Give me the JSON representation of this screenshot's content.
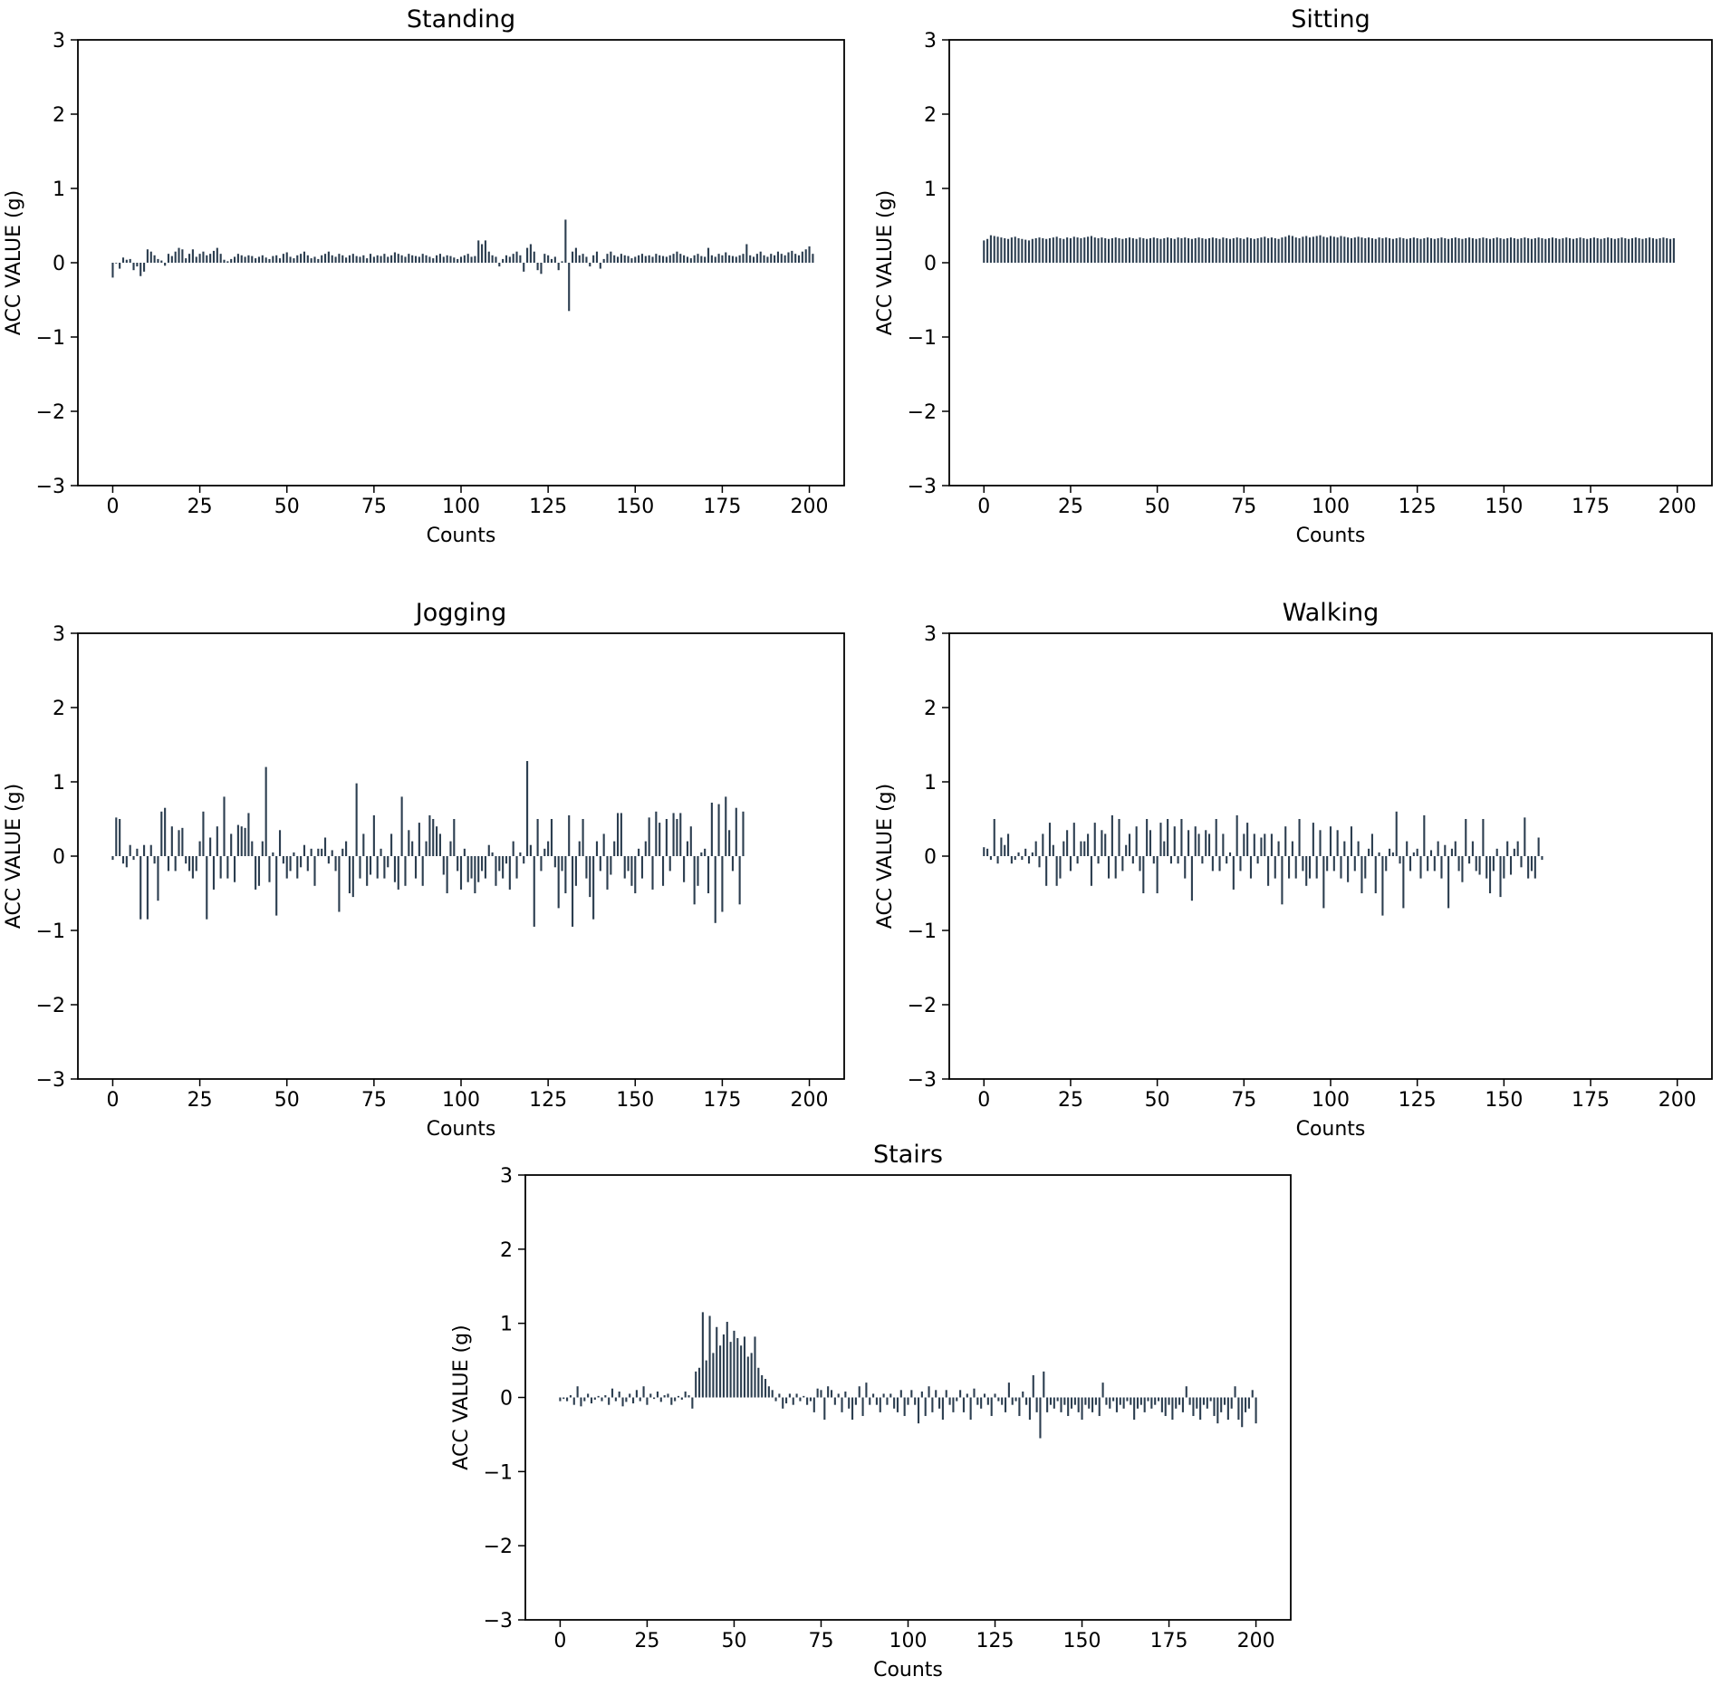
{
  "figure": {
    "bar_color": "#2c3e50"
  },
  "chart_data": [
    {
      "type": "bar",
      "title": "Standing",
      "xlabel": "Counts",
      "ylabel": "ACC VALUE (g)",
      "xlim": [
        -10,
        210
      ],
      "ylim": [
        -3,
        3
      ],
      "xticks": [
        0,
        25,
        50,
        75,
        100,
        125,
        150,
        175,
        200
      ],
      "xtick_labels": [
        "0",
        "25",
        "50",
        "75",
        "100",
        "125",
        "150",
        "175",
        "200"
      ],
      "yticks": [
        -3,
        -2,
        -1,
        0,
        1,
        2,
        3
      ],
      "ytick_labels": [
        "−3",
        "−2",
        "−1",
        "0",
        "1",
        "2",
        "3"
      ],
      "x": {
        "start": 0,
        "step": 1
      },
      "values": [
        -0.2,
        0,
        -0.08,
        0.07,
        0.04,
        0.05,
        -0.1,
        -0.05,
        -0.18,
        -0.12,
        0.18,
        0.15,
        0.1,
        0.05,
        0.03,
        -0.04,
        0.12,
        0.09,
        0.15,
        0.2,
        0.18,
        0.06,
        0.12,
        0.18,
        0.08,
        0.12,
        0.15,
        0.1,
        0.12,
        0.16,
        0.2,
        0.12,
        0.04,
        0.02,
        0.05,
        0.08,
        0.12,
        0.1,
        0.08,
        0.1,
        0.09,
        0.06,
        0.08,
        0.1,
        0.07,
        0.05,
        0.09,
        0.1,
        0.06,
        0.12,
        0.14,
        0.08,
        0.06,
        0.1,
        0.12,
        0.15,
        0.1,
        0.06,
        0.08,
        0.05,
        0.1,
        0.12,
        0.15,
        0.1,
        0.08,
        0.12,
        0.1,
        0.07,
        0.1,
        0.12,
        0.09,
        0.08,
        0.1,
        0.06,
        0.12,
        0.08,
        0.1,
        0.09,
        0.12,
        0.08,
        0.1,
        0.14,
        0.12,
        0.1,
        0.08,
        0.12,
        0.1,
        0.09,
        0.08,
        0.12,
        0.1,
        0.08,
        0.06,
        0.1,
        0.12,
        0.08,
        0.1,
        0.09,
        0.07,
        0.05,
        0.08,
        0.1,
        0.12,
        0.08,
        0.09,
        0.3,
        0.25,
        0.3,
        0.15,
        0.1,
        0.08,
        -0.05,
        0.05,
        0.1,
        0.08,
        0.12,
        0.15,
        0.1,
        -0.12,
        0.2,
        0.25,
        0.15,
        -0.1,
        -0.15,
        0.12,
        0.1,
        0.05,
        0.08,
        -0.1,
        0.02,
        0.58,
        -0.65,
        0.15,
        0.2,
        0.1,
        0.12,
        0.08,
        -0.05,
        0.1,
        0.15,
        -0.08,
        0.05,
        0.12,
        0.15,
        0.1,
        0.08,
        0.12,
        0.1,
        0.09,
        0.06,
        0.08,
        0.1,
        0.12,
        0.09,
        0.1,
        0.08,
        0.12,
        0.1,
        0.09,
        0.08,
        0.1,
        0.12,
        0.15,
        0.12,
        0.1,
        0.08,
        0.06,
        0.1,
        0.12,
        0.09,
        0.08,
        0.2,
        0.1,
        0.08,
        0.12,
        0.1,
        0.14,
        0.1,
        0.09,
        0.08,
        0.1,
        0.12,
        0.25,
        0.1,
        0.08,
        0.12,
        0.15,
        0.1,
        0.08,
        0.12,
        0.1,
        0.15,
        0.12,
        0.1,
        0.14,
        0.16,
        0.12,
        0.1,
        0.15,
        0.18,
        0.22,
        0.12
      ]
    },
    {
      "type": "bar",
      "title": "Sitting",
      "xlabel": "Counts",
      "ylabel": "ACC VALUE (g)",
      "xlim": [
        -10,
        210
      ],
      "ylim": [
        -3,
        3
      ],
      "xticks": [
        0,
        25,
        50,
        75,
        100,
        125,
        150,
        175,
        200
      ],
      "xtick_labels": [
        "0",
        "25",
        "50",
        "75",
        "100",
        "125",
        "150",
        "175",
        "200"
      ],
      "yticks": [
        -3,
        -2,
        -1,
        0,
        1,
        2,
        3
      ],
      "ytick_labels": [
        "−3",
        "−2",
        "−1",
        "0",
        "1",
        "2",
        "3"
      ],
      "x": {
        "start": 0,
        "step": 1
      },
      "values": [
        0.3,
        0.32,
        0.37,
        0.36,
        0.35,
        0.34,
        0.33,
        0.32,
        0.34,
        0.35,
        0.33,
        0.32,
        0.31,
        0.3,
        0.32,
        0.33,
        0.34,
        0.33,
        0.32,
        0.33,
        0.34,
        0.35,
        0.33,
        0.32,
        0.34,
        0.33,
        0.35,
        0.34,
        0.33,
        0.34,
        0.35,
        0.36,
        0.34,
        0.33,
        0.34,
        0.33,
        0.32,
        0.33,
        0.34,
        0.33,
        0.32,
        0.33,
        0.34,
        0.33,
        0.32,
        0.34,
        0.33,
        0.32,
        0.33,
        0.34,
        0.33,
        0.32,
        0.33,
        0.34,
        0.33,
        0.32,
        0.34,
        0.33,
        0.34,
        0.33,
        0.32,
        0.33,
        0.34,
        0.33,
        0.32,
        0.33,
        0.34,
        0.33,
        0.32,
        0.34,
        0.33,
        0.32,
        0.33,
        0.34,
        0.33,
        0.32,
        0.34,
        0.33,
        0.32,
        0.33,
        0.34,
        0.35,
        0.33,
        0.34,
        0.33,
        0.32,
        0.34,
        0.35,
        0.37,
        0.36,
        0.34,
        0.33,
        0.35,
        0.36,
        0.34,
        0.35,
        0.36,
        0.37,
        0.35,
        0.34,
        0.36,
        0.35,
        0.34,
        0.36,
        0.35,
        0.34,
        0.33,
        0.34,
        0.35,
        0.34,
        0.33,
        0.34,
        0.33,
        0.32,
        0.34,
        0.33,
        0.34,
        0.33,
        0.32,
        0.33,
        0.34,
        0.33,
        0.32,
        0.33,
        0.34,
        0.33,
        0.32,
        0.33,
        0.34,
        0.33,
        0.32,
        0.33,
        0.34,
        0.33,
        0.32,
        0.33,
        0.34,
        0.33,
        0.32,
        0.33,
        0.34,
        0.33,
        0.32,
        0.33,
        0.34,
        0.33,
        0.32,
        0.33,
        0.34,
        0.33,
        0.32,
        0.33,
        0.34,
        0.33,
        0.32,
        0.33,
        0.34,
        0.33,
        0.32,
        0.33,
        0.34,
        0.33,
        0.32,
        0.33,
        0.34,
        0.33,
        0.32,
        0.33,
        0.34,
        0.33,
        0.32,
        0.33,
        0.34,
        0.33,
        0.32,
        0.33,
        0.34,
        0.33,
        0.32,
        0.33,
        0.34,
        0.33,
        0.32,
        0.33,
        0.34,
        0.33,
        0.32,
        0.33,
        0.34,
        0.33,
        0.32,
        0.33,
        0.34,
        0.33,
        0.32,
        0.33,
        0.34,
        0.33,
        0.32,
        0.33
      ]
    },
    {
      "type": "bar",
      "title": "Jogging",
      "xlabel": "Counts",
      "ylabel": "ACC VALUE (g)",
      "xlim": [
        -10,
        210
      ],
      "ylim": [
        -3,
        3
      ],
      "xticks": [
        0,
        25,
        50,
        75,
        100,
        125,
        150,
        175,
        200
      ],
      "xtick_labels": [
        "0",
        "25",
        "50",
        "75",
        "100",
        "125",
        "150",
        "175",
        "200"
      ],
      "yticks": [
        -3,
        -2,
        -1,
        0,
        1,
        2,
        3
      ],
      "ytick_labels": [
        "−3",
        "−2",
        "−1",
        "0",
        "1",
        "2",
        "3"
      ],
      "x": {
        "start": 0,
        "step": 1
      },
      "values": [
        -0.05,
        0.52,
        0.5,
        -0.1,
        -0.15,
        0.15,
        -0.05,
        0.1,
        -0.85,
        0.15,
        -0.85,
        0.15,
        -0.1,
        -0.6,
        0.6,
        0.65,
        -0.2,
        0.4,
        -0.2,
        0.35,
        0.38,
        -0.1,
        -0.2,
        -0.3,
        -0.2,
        0.2,
        0.6,
        -0.85,
        0.25,
        -0.45,
        0.4,
        -0.3,
        0.8,
        -0.3,
        0.3,
        -0.35,
        0.42,
        0.4,
        0.38,
        0.58,
        0.2,
        -0.45,
        -0.4,
        0.2,
        1.2,
        -0.35,
        0.05,
        -0.8,
        0.35,
        -0.1,
        -0.3,
        -0.2,
        0.05,
        -0.3,
        -0.15,
        0.15,
        -0.2,
        0.1,
        -0.4,
        0.1,
        0.1,
        0.25,
        -0.1,
        0.08,
        -0.2,
        -0.75,
        0.1,
        0.2,
        -0.5,
        -0.55,
        0.98,
        -0.3,
        0.3,
        -0.4,
        -0.25,
        0.55,
        -0.3,
        0.1,
        -0.3,
        -0.15,
        0.3,
        -0.35,
        -0.45,
        0.8,
        -0.4,
        0.35,
        0.2,
        -0.3,
        0.45,
        -0.4,
        0.2,
        0.55,
        0.5,
        0.4,
        0.3,
        -0.25,
        -0.5,
        0.2,
        0.5,
        -0.2,
        -0.45,
        0.1,
        -0.35,
        -0.3,
        -0.5,
        -0.35,
        -0.2,
        -0.3,
        0.15,
        0.05,
        -0.4,
        -0.2,
        -0.3,
        -0.1,
        -0.45,
        0.2,
        -0.3,
        0.05,
        -0.1,
        1.28,
        0.15,
        -0.95,
        0.5,
        -0.2,
        0.1,
        0.2,
        0.5,
        -0.15,
        -0.7,
        -0.2,
        -0.5,
        0.55,
        -0.95,
        -0.4,
        0.2,
        0.5,
        -0.3,
        -0.55,
        -0.85,
        0.2,
        -0.2,
        0.3,
        -0.45,
        -0.25,
        0.2,
        0.58,
        0.58,
        -0.3,
        -0.2,
        -0.4,
        -0.5,
        0.1,
        -0.3,
        0.2,
        0.52,
        -0.45,
        0.6,
        0.45,
        -0.4,
        0.5,
        -0.2,
        0.58,
        0.5,
        0.58,
        -0.35,
        0.2,
        0.4,
        -0.65,
        -0.4,
        0.05,
        0.1,
        -0.5,
        0.72,
        -0.9,
        0.7,
        -0.75,
        0.8,
        0.35,
        -0.2,
        0.65,
        -0.65,
        0.6
      ]
    },
    {
      "type": "bar",
      "title": "Walking",
      "xlabel": "Counts",
      "ylabel": "ACC VALUE (g)",
      "xlim": [
        -10,
        210
      ],
      "ylim": [
        -3,
        3
      ],
      "xticks": [
        0,
        25,
        50,
        75,
        100,
        125,
        150,
        175,
        200
      ],
      "xtick_labels": [
        "0",
        "25",
        "50",
        "75",
        "100",
        "125",
        "150",
        "175",
        "200"
      ],
      "yticks": [
        -3,
        -2,
        -1,
        0,
        1,
        2,
        3
      ],
      "ytick_labels": [
        "−3",
        "−2",
        "−1",
        "0",
        "1",
        "2",
        "3"
      ],
      "x": {
        "start": 0,
        "step": 1
      },
      "values": [
        0.12,
        0.1,
        -0.05,
        0.5,
        -0.1,
        0.25,
        0.15,
        0.3,
        -0.1,
        -0.05,
        0.05,
        -0.05,
        0.1,
        -0.1,
        0.05,
        0.2,
        -0.15,
        0.3,
        -0.4,
        0.45,
        0.15,
        -0.4,
        -0.3,
        0.2,
        0.35,
        -0.2,
        0.45,
        -0.1,
        0.2,
        0.2,
        0.3,
        -0.4,
        0.45,
        -0.1,
        0.35,
        0.3,
        -0.3,
        0.55,
        -0.3,
        0.5,
        -0.2,
        0.15,
        0.3,
        -0.1,
        0.4,
        -0.2,
        -0.5,
        0.5,
        0.35,
        -0.1,
        -0.5,
        0.45,
        0.2,
        0.5,
        -0.1,
        0.4,
        -0.1,
        0.5,
        -0.3,
        0.35,
        -0.6,
        0.4,
        0.3,
        -0.1,
        0.35,
        0.3,
        -0.2,
        0.5,
        -0.2,
        0.3,
        -0.1,
        0.05,
        -0.45,
        0.55,
        -0.2,
        0.3,
        0.45,
        -0.3,
        0.3,
        -0.1,
        0.25,
        0.3,
        -0.4,
        0.3,
        -0.3,
        0.2,
        -0.65,
        0.4,
        -0.3,
        0.2,
        -0.3,
        0.5,
        -0.2,
        -0.4,
        -0.3,
        0.45,
        -0.3,
        0.35,
        -0.7,
        -0.2,
        0.4,
        -0.2,
        0.35,
        -0.3,
        0.2,
        -0.35,
        0.4,
        -0.2,
        0.2,
        -0.5,
        -0.3,
        0.1,
        0.3,
        -0.5,
        0.05,
        -0.8,
        -0.2,
        0.1,
        0.05,
        0.6,
        -0.1,
        -0.7,
        0.2,
        -0.2,
        0.05,
        0.1,
        -0.3,
        0.55,
        -0.2,
        0.08,
        -0.2,
        0.2,
        -0.3,
        0.15,
        -0.7,
        0.1,
        0.2,
        -0.2,
        -0.35,
        0.5,
        -0.1,
        0.2,
        -0.2,
        -0.25,
        0.5,
        -0.3,
        -0.5,
        -0.2,
        0.1,
        -0.55,
        -0.3,
        0.2,
        -0.25,
        0.1,
        0.2,
        -0.15,
        0.52,
        -0.3,
        -0.2,
        -0.3,
        0.25,
        -0.05
      ]
    },
    {
      "type": "bar",
      "title": "Stairs",
      "xlabel": "Counts",
      "ylabel": "ACC VALUE (g)",
      "xlim": [
        -10,
        210
      ],
      "ylim": [
        -3,
        3
      ],
      "xticks": [
        0,
        25,
        50,
        75,
        100,
        125,
        150,
        175,
        200
      ],
      "xtick_labels": [
        "0",
        "25",
        "50",
        "75",
        "100",
        "125",
        "150",
        "175",
        "200"
      ],
      "yticks": [
        -3,
        -2,
        -1,
        0,
        1,
        2,
        3
      ],
      "ytick_labels": [
        "−3",
        "−2",
        "−1",
        "0",
        "1",
        "2",
        "3"
      ],
      "x": {
        "start": 0,
        "step": 1
      },
      "values": [
        -0.05,
        -0.02,
        -0.05,
        0.03,
        -0.1,
        0.15,
        -0.12,
        -0.05,
        0.05,
        -0.08,
        -0.03,
        0.02,
        -0.05,
        0.03,
        -0.1,
        0.12,
        -0.05,
        0.08,
        -0.12,
        -0.06,
        0.05,
        -0.08,
        0.1,
        -0.05,
        0.15,
        -0.1,
        0.05,
        -0.02,
        0.08,
        -0.06,
        0.03,
        0.05,
        -0.1,
        -0.05,
        0.02,
        -0.03,
        0.08,
        0.03,
        -0.15,
        0.35,
        0.4,
        1.15,
        0.5,
        1.1,
        0.6,
        0.95,
        0.7,
        0.85,
        1.02,
        0.75,
        0.9,
        0.8,
        0.7,
        0.82,
        0.55,
        0.6,
        0.82,
        0.4,
        0.3,
        0.25,
        0.15,
        0.1,
        -0.05,
        0.05,
        -0.15,
        -0.08,
        0.05,
        -0.1,
        0.05,
        -0.05,
        0.02,
        -0.1,
        -0.05,
        -0.2,
        0.12,
        0.1,
        -0.3,
        0.15,
        0.1,
        -0.1,
        0.05,
        -0.2,
        0.08,
        -0.15,
        -0.3,
        -0.1,
        0.15,
        -0.25,
        0.2,
        -0.1,
        0.05,
        -0.1,
        -0.2,
        0.05,
        -0.1,
        0.05,
        -0.15,
        -0.2,
        0.1,
        -0.25,
        -0.1,
        0.1,
        -0.1,
        -0.35,
        0.08,
        -0.25,
        0.15,
        -0.2,
        0.1,
        -0.15,
        -0.3,
        0.1,
        -0.1,
        -0.2,
        -0.05,
        0.1,
        -0.2,
        0.05,
        -0.3,
        0.12,
        -0.1,
        -0.15,
        0.05,
        -0.1,
        -0.25,
        0.05,
        -0.05,
        -0.1,
        -0.2,
        0.2,
        -0.1,
        -0.05,
        -0.25,
        0.08,
        -0.1,
        -0.3,
        0.3,
        -0.2,
        -0.55,
        0.35,
        -0.2,
        -0.1,
        -0.15,
        -0.05,
        -0.2,
        -0.1,
        -0.25,
        -0.15,
        -0.1,
        -0.2,
        -0.3,
        -0.1,
        -0.15,
        -0.2,
        -0.1,
        -0.25,
        0.2,
        -0.1,
        -0.15,
        -0.05,
        -0.2,
        -0.1,
        -0.15,
        -0.05,
        -0.1,
        -0.3,
        -0.15,
        -0.1,
        -0.2,
        -0.05,
        -0.15,
        -0.1,
        -0.05,
        -0.2,
        -0.25,
        -0.1,
        -0.3,
        -0.15,
        -0.1,
        -0.2,
        0.15,
        -0.1,
        -0.25,
        -0.15,
        -0.3,
        -0.1,
        -0.15,
        -0.05,
        -0.25,
        -0.35,
        -0.2,
        -0.1,
        -0.3,
        -0.15,
        0.15,
        -0.3,
        -0.4,
        -0.2,
        -0.15,
        0.1,
        -0.35
      ]
    }
  ]
}
